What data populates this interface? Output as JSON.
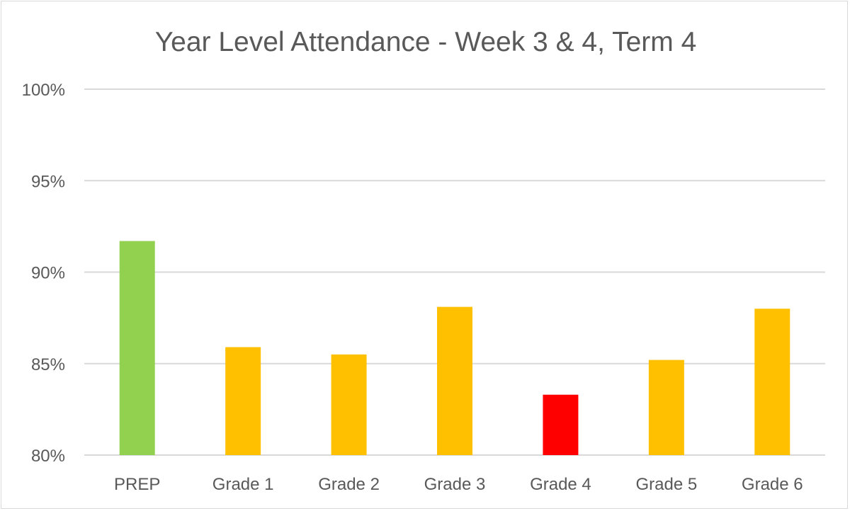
{
  "chart_data": {
    "type": "bar",
    "title": "Year Level Attendance - Week 3 & 4, Term 4",
    "xlabel": "",
    "ylabel": "",
    "categories": [
      "PREP",
      "Grade 1",
      "Grade 2",
      "Grade 3",
      "Grade 4",
      "Grade 5",
      "Grade 6"
    ],
    "values": [
      91.7,
      85.9,
      85.5,
      88.1,
      83.3,
      85.2,
      88.0
    ],
    "colors": [
      "#92d050",
      "#ffc000",
      "#ffc000",
      "#ffc000",
      "#ff0000",
      "#ffc000",
      "#ffc000"
    ],
    "ylim": [
      80,
      100
    ],
    "yticks": [
      80,
      85,
      90,
      95,
      100
    ],
    "ytick_labels": [
      "80%",
      "85%",
      "90%",
      "95%",
      "100%"
    ],
    "grid": true,
    "legend": "none"
  }
}
